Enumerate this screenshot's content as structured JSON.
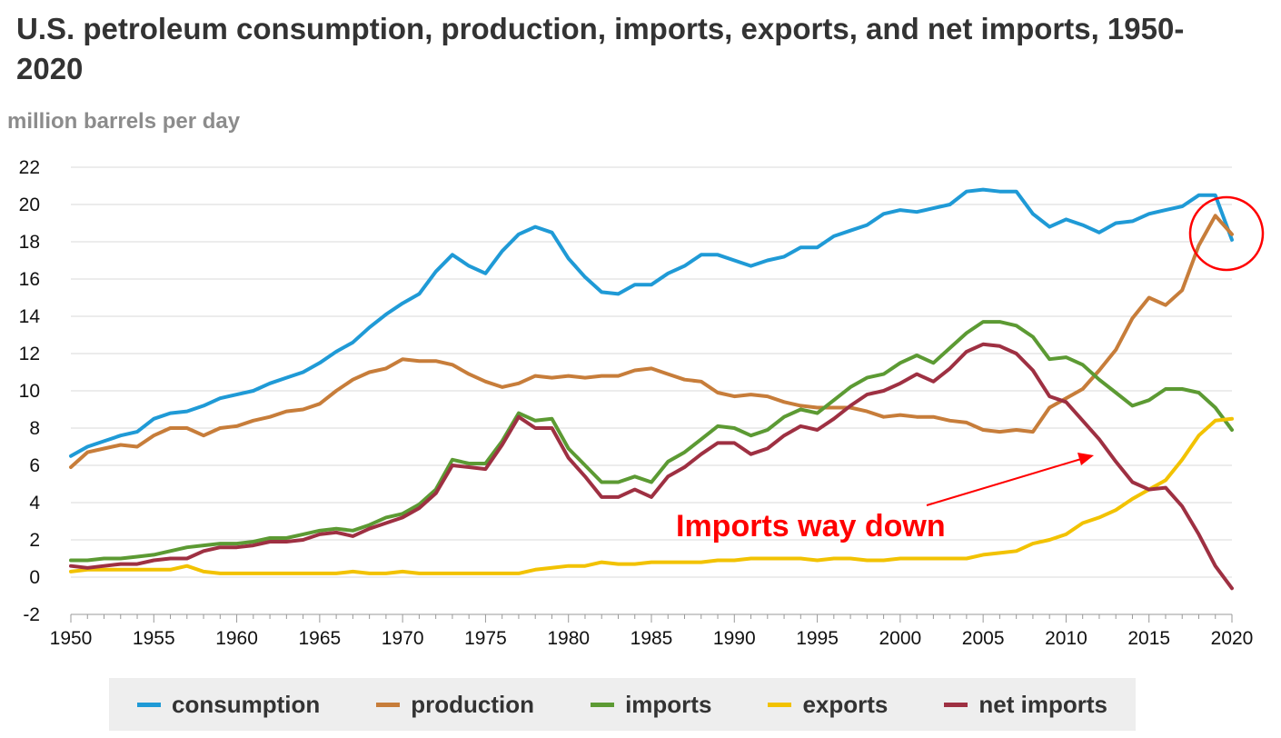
{
  "header": {
    "title": "U.S. petroleum consumption, production, imports, exports, and net imports, 1950-2020",
    "units": "million barrels per day"
  },
  "annotation": {
    "text": "Imports way down",
    "color": "#ff0000"
  },
  "chart_data": {
    "type": "line",
    "title": "U.S. petroleum consumption, production, imports, exports, and net imports, 1950-2020",
    "ylabel": "million barrels per day",
    "xlim": [
      1950,
      2020
    ],
    "ylim": [
      -2,
      22
    ],
    "y_ticks": [
      -2,
      0,
      2,
      4,
      6,
      8,
      10,
      12,
      14,
      16,
      18,
      20,
      22
    ],
    "x_ticks": [
      1950,
      1955,
      1960,
      1965,
      1970,
      1975,
      1980,
      1985,
      1990,
      1995,
      2000,
      2005,
      2010,
      2015,
      2020
    ],
    "grid": true,
    "legend_position": "bottom",
    "x": [
      1950,
      1951,
      1952,
      1953,
      1954,
      1955,
      1956,
      1957,
      1958,
      1959,
      1960,
      1961,
      1962,
      1963,
      1964,
      1965,
      1966,
      1967,
      1968,
      1969,
      1970,
      1971,
      1972,
      1973,
      1974,
      1975,
      1976,
      1977,
      1978,
      1979,
      1980,
      1981,
      1982,
      1983,
      1984,
      1985,
      1986,
      1987,
      1988,
      1989,
      1990,
      1991,
      1992,
      1993,
      1994,
      1995,
      1996,
      1997,
      1998,
      1999,
      2000,
      2001,
      2002,
      2003,
      2004,
      2005,
      2006,
      2007,
      2008,
      2009,
      2010,
      2011,
      2012,
      2013,
      2014,
      2015,
      2016,
      2017,
      2018,
      2019,
      2020
    ],
    "series": [
      {
        "name": "consumption",
        "color": "#1f9ad6",
        "values": [
          6.5,
          7.0,
          7.3,
          7.6,
          7.8,
          8.5,
          8.8,
          8.9,
          9.2,
          9.6,
          9.8,
          10.0,
          10.4,
          10.7,
          11.0,
          11.5,
          12.1,
          12.6,
          13.4,
          14.1,
          14.7,
          15.2,
          16.4,
          17.3,
          16.7,
          16.3,
          17.5,
          18.4,
          18.8,
          18.5,
          17.1,
          16.1,
          15.3,
          15.2,
          15.7,
          15.7,
          16.3,
          16.7,
          17.3,
          17.3,
          17.0,
          16.7,
          17.0,
          17.2,
          17.7,
          17.7,
          18.3,
          18.6,
          18.9,
          19.5,
          19.7,
          19.6,
          19.8,
          20.0,
          20.7,
          20.8,
          20.7,
          20.7,
          19.5,
          18.8,
          19.2,
          18.9,
          18.5,
          19.0,
          19.1,
          19.5,
          19.7,
          19.9,
          20.5,
          20.5,
          18.1
        ]
      },
      {
        "name": "production",
        "color": "#c77d3a",
        "values": [
          5.9,
          6.7,
          6.9,
          7.1,
          7.0,
          7.6,
          8.0,
          8.0,
          7.6,
          8.0,
          8.1,
          8.4,
          8.6,
          8.9,
          9.0,
          9.3,
          10.0,
          10.6,
          11.0,
          11.2,
          11.7,
          11.6,
          11.6,
          11.4,
          10.9,
          10.5,
          10.2,
          10.4,
          10.8,
          10.7,
          10.8,
          10.7,
          10.8,
          10.8,
          11.1,
          11.2,
          10.9,
          10.6,
          10.5,
          9.9,
          9.7,
          9.8,
          9.7,
          9.4,
          9.2,
          9.1,
          9.1,
          9.1,
          8.9,
          8.6,
          8.7,
          8.6,
          8.6,
          8.4,
          8.3,
          7.9,
          7.8,
          7.9,
          7.8,
          9.1,
          9.6,
          10.1,
          11.1,
          12.2,
          13.9,
          15.0,
          14.6,
          15.4,
          17.8,
          19.4,
          18.4
        ]
      },
      {
        "name": "imports",
        "color": "#5c9a33",
        "values": [
          0.9,
          0.9,
          1.0,
          1.0,
          1.1,
          1.2,
          1.4,
          1.6,
          1.7,
          1.8,
          1.8,
          1.9,
          2.1,
          2.1,
          2.3,
          2.5,
          2.6,
          2.5,
          2.8,
          3.2,
          3.4,
          3.9,
          4.7,
          6.3,
          6.1,
          6.1,
          7.3,
          8.8,
          8.4,
          8.5,
          6.9,
          6.0,
          5.1,
          5.1,
          5.4,
          5.1,
          6.2,
          6.7,
          7.4,
          8.1,
          8.0,
          7.6,
          7.9,
          8.6,
          9.0,
          8.8,
          9.5,
          10.2,
          10.7,
          10.9,
          11.5,
          11.9,
          11.5,
          12.3,
          13.1,
          13.7,
          13.7,
          13.5,
          12.9,
          11.7,
          11.8,
          11.4,
          10.6,
          9.9,
          9.2,
          9.5,
          10.1,
          10.1,
          9.9,
          9.1,
          7.9
        ]
      },
      {
        "name": "exports",
        "color": "#f2c200",
        "values": [
          0.3,
          0.4,
          0.4,
          0.4,
          0.4,
          0.4,
          0.4,
          0.6,
          0.3,
          0.2,
          0.2,
          0.2,
          0.2,
          0.2,
          0.2,
          0.2,
          0.2,
          0.3,
          0.2,
          0.2,
          0.3,
          0.2,
          0.2,
          0.2,
          0.2,
          0.2,
          0.2,
          0.2,
          0.4,
          0.5,
          0.6,
          0.6,
          0.8,
          0.7,
          0.7,
          0.8,
          0.8,
          0.8,
          0.8,
          0.9,
          0.9,
          1.0,
          1.0,
          1.0,
          1.0,
          0.9,
          1.0,
          1.0,
          0.9,
          0.9,
          1.0,
          1.0,
          1.0,
          1.0,
          1.0,
          1.2,
          1.3,
          1.4,
          1.8,
          2.0,
          2.3,
          2.9,
          3.2,
          3.6,
          4.2,
          4.7,
          5.2,
          6.3,
          7.6,
          8.4,
          8.5
        ]
      },
      {
        "name": "net imports",
        "color": "#9e3042",
        "values": [
          0.6,
          0.5,
          0.6,
          0.7,
          0.7,
          0.9,
          1.0,
          1.0,
          1.4,
          1.6,
          1.6,
          1.7,
          1.9,
          1.9,
          2.0,
          2.3,
          2.4,
          2.2,
          2.6,
          2.9,
          3.2,
          3.7,
          4.5,
          6.0,
          5.9,
          5.8,
          7.1,
          8.6,
          8.0,
          8.0,
          6.4,
          5.4,
          4.3,
          4.3,
          4.7,
          4.3,
          5.4,
          5.9,
          6.6,
          7.2,
          7.2,
          6.6,
          6.9,
          7.6,
          8.1,
          7.9,
          8.5,
          9.2,
          9.8,
          10.0,
          10.4,
          10.9,
          10.5,
          11.2,
          12.1,
          12.5,
          12.4,
          12.0,
          11.1,
          9.7,
          9.4,
          8.4,
          7.4,
          6.2,
          5.1,
          4.7,
          4.8,
          3.8,
          2.3,
          0.6,
          -0.6
        ]
      }
    ]
  }
}
